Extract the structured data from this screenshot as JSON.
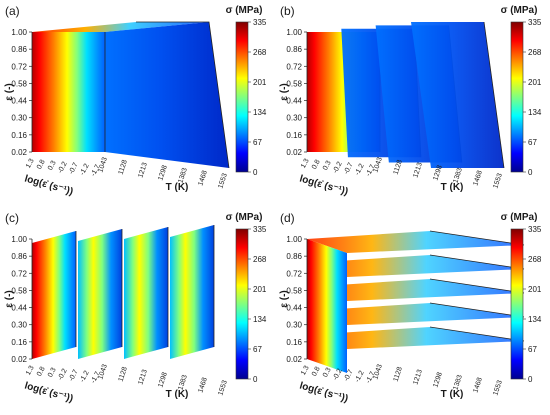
{
  "chart_data": [
    {
      "panel": "(a)",
      "type": "heatmap",
      "slicing": "full surface blocks",
      "y_axis_label": "ε (-)",
      "y_ticks": [
        "1.00",
        "0.86",
        "0.72",
        "0.58",
        "0.44",
        "0.30",
        "0.16",
        "0.02"
      ],
      "depth_axis_label": "log(ε̇ (s⁻¹))",
      "depth_ticks": [
        "1.3",
        "0.8",
        "0.3",
        "-0.2",
        "-0.7",
        "-1.2",
        "-1.7"
      ],
      "x_axis_label": "T (K)",
      "x_ticks": [
        "1043",
        "1128",
        "1213",
        "1298",
        "1383",
        "1468",
        "1553"
      ],
      "colorbar_title": "σ (MPa)",
      "colorbar_ticks": [
        "335",
        "268",
        "201",
        "134",
        "67",
        "0"
      ],
      "colorbar_range": [
        0,
        335
      ]
    },
    {
      "panel": "(b)",
      "type": "heatmap",
      "slicing": "slices along T",
      "y_axis_label": "ε (-)",
      "y_ticks": [
        "1.00",
        "0.86",
        "0.72",
        "0.58",
        "0.44",
        "0.30",
        "0.16",
        "0.02"
      ],
      "depth_axis_label": "log(ε̇ (s⁻¹))",
      "depth_ticks": [
        "1.3",
        "0.8",
        "0.3",
        "-0.2",
        "-0.7",
        "-1.2",
        "-1.7"
      ],
      "x_axis_label": "T (K)",
      "x_ticks": [
        "1043",
        "1128",
        "1213",
        "1298",
        "1383",
        "1468",
        "1553"
      ],
      "colorbar_title": "σ (MPa)",
      "colorbar_ticks": [
        "335",
        "268",
        "201",
        "134",
        "67",
        "0"
      ],
      "colorbar_range": [
        0,
        335
      ]
    },
    {
      "panel": "(c)",
      "type": "heatmap",
      "slicing": "slices along log strain rate",
      "y_axis_label": "ε (-)",
      "y_ticks": [
        "1.00",
        "0.86",
        "0.72",
        "0.58",
        "0.44",
        "0.30",
        "0.16",
        "0.02"
      ],
      "depth_axis_label": "log(ε̇ (s⁻¹))",
      "depth_ticks": [
        "1.3",
        "0.8",
        "0.3",
        "-0.2",
        "-0.7",
        "-1.2",
        "-1.7"
      ],
      "x_axis_label": "T (K)",
      "x_ticks": [
        "1043",
        "1128",
        "1213",
        "1298",
        "1383",
        "1468",
        "1553"
      ],
      "colorbar_title": "σ (MPa)",
      "colorbar_ticks": [
        "335",
        "268",
        "201",
        "134",
        "67",
        "0"
      ],
      "colorbar_range": [
        0,
        335
      ]
    },
    {
      "panel": "(d)",
      "type": "heatmap",
      "slicing": "slices along strain",
      "y_axis_label": "ε (-)",
      "y_ticks": [
        "1.00",
        "0.86",
        "0.72",
        "0.58",
        "0.44",
        "0.30",
        "0.16",
        "0.02"
      ],
      "depth_axis_label": "log(ε̇ (s⁻¹))",
      "depth_ticks": [
        "1.3",
        "0.8",
        "0.3",
        "-0.2",
        "-0.7",
        "-1.2",
        "-1.7"
      ],
      "x_axis_label": "T (K)",
      "x_ticks": [
        "1043",
        "1128",
        "1213",
        "1298",
        "1383",
        "1468",
        "1553"
      ],
      "colorbar_title": "σ (MPa)",
      "colorbar_ticks": [
        "335",
        "268",
        "201",
        "134",
        "67",
        "0"
      ],
      "colorbar_range": [
        0,
        335
      ]
    }
  ],
  "colormap": [
    "#00008f",
    "#0000ff",
    "#0080ff",
    "#00ffff",
    "#80ff80",
    "#ffff00",
    "#ff8000",
    "#ff0000",
    "#800000"
  ]
}
